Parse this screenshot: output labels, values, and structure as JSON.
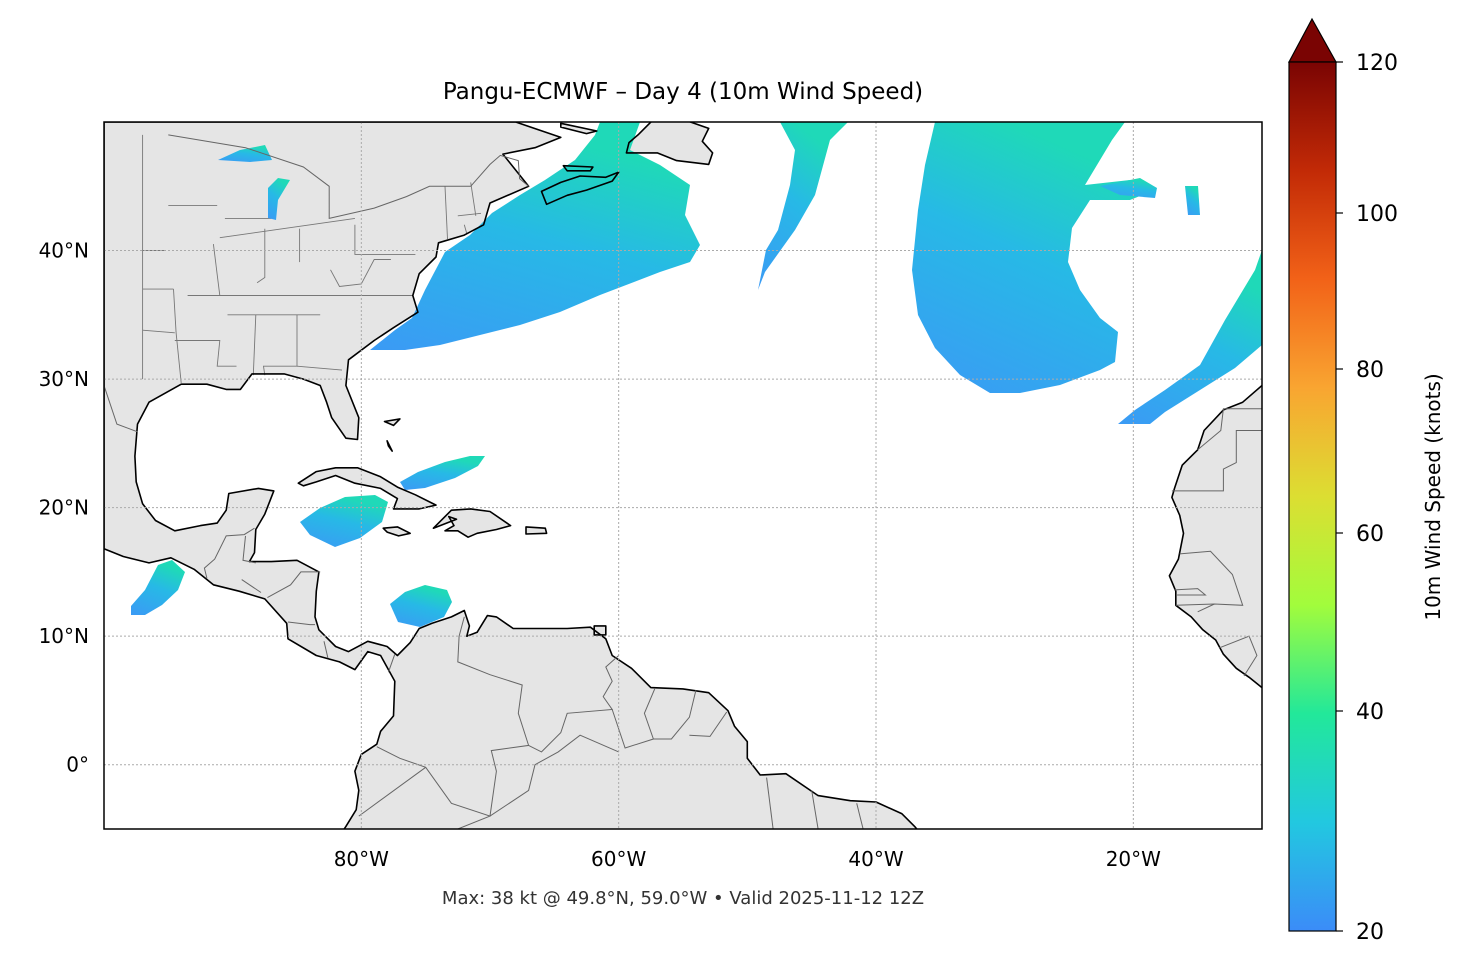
{
  "title": "Pangu-ECMWF – Day 4 (10m Wind Speed)",
  "footer": "Max: 38 kt @ 49.8°N, 59.0°W • Valid 2025-11-12 12Z",
  "map": {
    "extent": {
      "lon": [
        -100,
        -10
      ],
      "lat": [
        -5,
        50
      ]
    },
    "lon_ticks": [
      {
        "value": -80,
        "label": "80°W"
      },
      {
        "value": -60,
        "label": "60°W"
      },
      {
        "value": -40,
        "label": "40°W"
      },
      {
        "value": -20,
        "label": "20°W"
      }
    ],
    "lat_ticks": [
      {
        "value": 0,
        "label": "0°"
      },
      {
        "value": 10,
        "label": "10°N"
      },
      {
        "value": 20,
        "label": "20°N"
      },
      {
        "value": 30,
        "label": "30°N"
      },
      {
        "value": 40,
        "label": "40°N"
      }
    ],
    "gridlines": true,
    "land_color": "#e5e5e5",
    "coast_color": "#000000",
    "border_color": "#666666"
  },
  "colorbar": {
    "label": "10m Wind Speed (knots)",
    "range": [
      20,
      120
    ],
    "extend": "max",
    "ticks": [
      {
        "value": 20,
        "label": "20"
      },
      {
        "value": 40,
        "label": "40"
      },
      {
        "value": 60,
        "label": "60"
      },
      {
        "value": 80,
        "label": "80"
      },
      {
        "value": 100,
        "label": "100"
      },
      {
        "value": 120,
        "label": "120"
      }
    ],
    "colors": [
      "#3b8cf8",
      "#22c8e0",
      "#22e89a",
      "#a2fc3c",
      "#dcde32",
      "#f9a531",
      "#f26218",
      "#c22a06",
      "#7a0403"
    ]
  },
  "max_wind": {
    "speed_kt": 38,
    "lat": 49.8,
    "lon": -59.0
  }
}
